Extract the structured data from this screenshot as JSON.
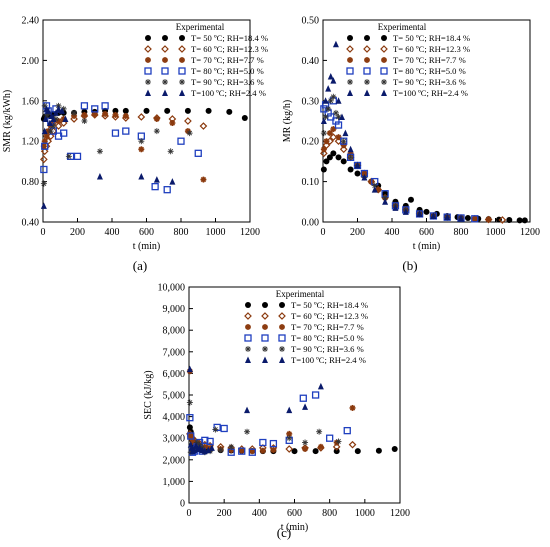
{
  "chart_data": [
    {
      "type": "scatter",
      "panel_label": "(a)",
      "xlabel": "t (min)",
      "ylabel": "SMR (kg/kWh)",
      "xlim": [
        0,
        1200
      ],
      "ylim": [
        0.4,
        2.4
      ],
      "x_ticks": [
        0,
        200,
        400,
        600,
        800,
        1000,
        1200
      ],
      "y_ticks": [
        0.4,
        0.8,
        1.2,
        1.6,
        2.0,
        2.4
      ],
      "y_tick_labels": [
        "0.40",
        "0.80",
        "1.20",
        "1.60",
        "2.00",
        "2.40"
      ],
      "grid": false,
      "legend_title": "Experimental",
      "legend_position": "top-right",
      "series": [
        {
          "name": "T= 50 ºC;  RH=18.4 %",
          "marker": "circle",
          "color": "#000000",
          "x": [
            5,
            10,
            20,
            30,
            45,
            60,
            90,
            120,
            180,
            240,
            300,
            360,
            420,
            480,
            600,
            720,
            840,
            960,
            1080,
            1170
          ],
          "y": [
            1.42,
            1.44,
            1.45,
            1.46,
            1.46,
            1.47,
            1.48,
            1.48,
            1.48,
            1.49,
            1.49,
            1.5,
            1.5,
            1.5,
            1.5,
            1.5,
            1.5,
            1.5,
            1.49,
            1.43
          ]
        },
        {
          "name": "T= 60 ºC;  RH=12.3 %",
          "marker": "diamond",
          "color": "#8b3a0e",
          "x": [
            5,
            10,
            20,
            30,
            45,
            60,
            90,
            120,
            180,
            240,
            300,
            360,
            420,
            480,
            570,
            660,
            750,
            840,
            930
          ],
          "y": [
            1.02,
            1.1,
            1.15,
            1.2,
            1.25,
            1.3,
            1.35,
            1.38,
            1.42,
            1.45,
            1.46,
            1.45,
            1.44,
            1.43,
            1.44,
            1.43,
            1.42,
            1.4,
            1.35
          ]
        },
        {
          "name": "T= 70 ºC;  RH=7.7 %",
          "marker": "asterisk",
          "color": "#8b3a0e",
          "x": [
            5,
            10,
            20,
            30,
            45,
            60,
            90,
            120,
            180,
            240,
            300,
            360,
            420,
            480,
            570,
            660,
            750,
            840,
            930
          ],
          "y": [
            1.15,
            1.2,
            1.25,
            1.3,
            1.35,
            1.38,
            1.4,
            1.42,
            1.45,
            1.46,
            1.47,
            1.47,
            1.46,
            1.45,
            1.12,
            1.42,
            1.38,
            1.3,
            0.82
          ]
        },
        {
          "name": "T= 80 ºC;  RH=5.0 %",
          "marker": "square",
          "color": "#1f3fbf",
          "x": [
            5,
            10,
            20,
            30,
            45,
            60,
            75,
            90,
            120,
            160,
            200,
            240,
            300,
            360,
            420,
            480,
            570,
            650,
            720,
            800,
            900
          ],
          "y": [
            0.92,
            1.15,
            1.55,
            1.5,
            1.4,
            1.3,
            1.52,
            1.25,
            1.28,
            1.05,
            1.05,
            1.55,
            1.52,
            1.55,
            1.28,
            1.3,
            1.25,
            0.75,
            0.72,
            1.2,
            1.08
          ]
        },
        {
          "name": "T= 90 ºC;  RH=3.6 %",
          "marker": "star",
          "color": "#333333",
          "x": [
            5,
            10,
            20,
            30,
            45,
            60,
            75,
            90,
            120,
            150,
            180,
            240,
            330,
            570,
            660,
            740,
            850
          ],
          "y": [
            0.78,
            1.55,
            1.45,
            1.48,
            1.3,
            1.35,
            1.42,
            1.55,
            1.52,
            1.05,
            1.48,
            1.4,
            1.1,
            1.2,
            1.3,
            1.1,
            1.28
          ]
        },
        {
          "name": "T=100 ºC;  RH=2.4 %",
          "marker": "triangle",
          "color": "#0a1a6b",
          "x": [
            5,
            10,
            15,
            20,
            30,
            40,
            50,
            60,
            75,
            90,
            110,
            130,
            330,
            570,
            660,
            750
          ],
          "y": [
            0.56,
            1.3,
            1.42,
            1.52,
            1.5,
            1.38,
            1.45,
            1.42,
            1.48,
            1.52,
            1.5,
            1.42,
            0.85,
            0.85,
            0.82,
            0.8
          ]
        }
      ]
    },
    {
      "type": "scatter",
      "panel_label": "(b)",
      "xlabel": "t (min)",
      "ylabel": "MR (kg/h)",
      "xlim": [
        0,
        1200
      ],
      "ylim": [
        0,
        0.5
      ],
      "x_ticks": [
        0,
        200,
        400,
        600,
        800,
        1000,
        1200
      ],
      "y_ticks": [
        0,
        0.1,
        0.2,
        0.3,
        0.4,
        0.5
      ],
      "y_tick_labels": [
        "0.00",
        "0.10",
        "0.20",
        "0.30",
        "0.40",
        "0.50"
      ],
      "grid": false,
      "legend_title": "Experimental",
      "legend_position": "top-right",
      "series": [
        {
          "name": "T= 50 ºC;  RH=18.4 %",
          "marker": "circle",
          "color": "#000000",
          "x": [
            5,
            20,
            40,
            60,
            90,
            120,
            160,
            200,
            240,
            280,
            320,
            360,
            420,
            480,
            510,
            560,
            600,
            660,
            720,
            780,
            840,
            900,
            960,
            1020,
            1080,
            1140,
            1170
          ],
          "y": [
            0.13,
            0.15,
            0.16,
            0.17,
            0.16,
            0.15,
            0.13,
            0.12,
            0.12,
            0.1,
            0.09,
            0.07,
            0.05,
            0.04,
            0.055,
            0.03,
            0.025,
            0.02,
            0.015,
            0.012,
            0.01,
            0.008,
            0.007,
            0.006,
            0.005,
            0.004,
            0.004
          ]
        },
        {
          "name": "T= 60 ºC;  RH=12.3 %",
          "marker": "diamond",
          "color": "#8b3a0e",
          "x": [
            5,
            20,
            40,
            60,
            90,
            120,
            160,
            200,
            240,
            280,
            320,
            360,
            420,
            480,
            560,
            640,
            720,
            800,
            880,
            960,
            1040
          ],
          "y": [
            0.17,
            0.19,
            0.2,
            0.21,
            0.2,
            0.18,
            0.16,
            0.14,
            0.12,
            0.1,
            0.08,
            0.06,
            0.04,
            0.03,
            0.02,
            0.015,
            0.012,
            0.01,
            0.008,
            0.006,
            0.005
          ]
        },
        {
          "name": "T= 70 ºC;  RH=7.7 %",
          "marker": "asterisk",
          "color": "#8b3a0e",
          "x": [
            5,
            20,
            40,
            60,
            90,
            120,
            160,
            200,
            240,
            280,
            320,
            360,
            420,
            480,
            560,
            640,
            720,
            800,
            880,
            960
          ],
          "y": [
            0.18,
            0.2,
            0.22,
            0.23,
            0.21,
            0.19,
            0.17,
            0.14,
            0.12,
            0.1,
            0.08,
            0.06,
            0.04,
            0.03,
            0.02,
            0.015,
            0.012,
            0.01,
            0.008,
            0.006
          ]
        },
        {
          "name": "T= 80 ºC;  RH=5.0 %",
          "marker": "square",
          "color": "#1f3fbf",
          "x": [
            5,
            15,
            30,
            45,
            60,
            75,
            90,
            120,
            160,
            200,
            240,
            300,
            360,
            420,
            480,
            560,
            640,
            720,
            800,
            880
          ],
          "y": [
            0.28,
            0.29,
            0.27,
            0.26,
            0.3,
            0.25,
            0.24,
            0.2,
            0.16,
            0.14,
            0.12,
            0.1,
            0.07,
            0.04,
            0.03,
            0.02,
            0.015,
            0.012,
            0.01,
            0.008
          ]
        },
        {
          "name": "T= 90 ºC;  RH=3.6 %",
          "marker": "star",
          "color": "#333333",
          "x": [
            5,
            15,
            30,
            45,
            60,
            75,
            90,
            120,
            160,
            200,
            240,
            300,
            360,
            420,
            480,
            560,
            640,
            720,
            800
          ],
          "y": [
            0.22,
            0.26,
            0.28,
            0.3,
            0.31,
            0.27,
            0.26,
            0.2,
            0.16,
            0.14,
            0.11,
            0.09,
            0.06,
            0.04,
            0.03,
            0.02,
            0.015,
            0.012,
            0.01
          ]
        },
        {
          "name": "T=100 ºC;  RH=2.4 %",
          "marker": "triangle",
          "color": "#0a1a6b",
          "x": [
            5,
            15,
            30,
            45,
            60,
            75,
            90,
            110,
            130,
            160,
            200,
            240,
            300,
            360,
            420,
            480,
            560,
            640,
            720,
            800
          ],
          "y": [
            0.25,
            0.3,
            0.33,
            0.36,
            0.35,
            0.44,
            0.3,
            0.26,
            0.22,
            0.18,
            0.14,
            0.11,
            0.08,
            0.05,
            0.035,
            0.025,
            0.02,
            0.015,
            0.012,
            0.01
          ]
        }
      ]
    },
    {
      "type": "scatter",
      "panel_label": "(c)",
      "xlabel": "t (min)",
      "ylabel": "SEC (kJ/kg)",
      "xlim": [
        0,
        1200
      ],
      "ylim": [
        0,
        10000
      ],
      "x_ticks": [
        0,
        200,
        400,
        600,
        800,
        1000,
        1200
      ],
      "y_ticks": [
        0,
        1000,
        2000,
        3000,
        4000,
        5000,
        6000,
        7000,
        8000,
        9000,
        10000
      ],
      "y_tick_labels": [
        "0",
        "1,000",
        "2,000",
        "3,000",
        "4,000",
        "5,000",
        "6,000",
        "7,000",
        "8,000",
        "9,000",
        "10,000"
      ],
      "grid": false,
      "legend_title": "Experimental",
      "legend_position": "top-right",
      "series": [
        {
          "name": "T= 50 ºC;  RH=18.4 %",
          "marker": "circle",
          "color": "#000000",
          "x": [
            5,
            10,
            20,
            30,
            45,
            60,
            90,
            120,
            180,
            240,
            300,
            360,
            420,
            480,
            600,
            720,
            840,
            960,
            1080,
            1170
          ],
          "y": [
            3500,
            3300,
            2900,
            2700,
            2600,
            2550,
            2500,
            2480,
            2450,
            2430,
            2420,
            2410,
            2400,
            2400,
            2400,
            2400,
            2400,
            2400,
            2420,
            2500
          ]
        },
        {
          "name": "T= 60 ºC;  RH=12.3 %",
          "marker": "diamond",
          "color": "#8b3a0e",
          "x": [
            5,
            10,
            20,
            30,
            45,
            60,
            90,
            120,
            180,
            240,
            300,
            360,
            420,
            480,
            570,
            660,
            750,
            840,
            930
          ],
          "y": [
            3200,
            3100,
            3000,
            2900,
            2800,
            2750,
            2700,
            2650,
            2600,
            2550,
            2500,
            2500,
            2550,
            2550,
            2500,
            2550,
            2550,
            2600,
            2700
          ]
        },
        {
          "name": "T= 70 ºC;  RH=7.7 %",
          "marker": "asterisk",
          "color": "#8b3a0e",
          "x": [
            5,
            10,
            20,
            30,
            45,
            60,
            90,
            120,
            180,
            240,
            300,
            360,
            420,
            480,
            570,
            660,
            750,
            840,
            930
          ],
          "y": [
            6100,
            3100,
            2900,
            2800,
            2700,
            2650,
            2600,
            2550,
            2500,
            2450,
            2420,
            2400,
            2420,
            2450,
            3200,
            2500,
            2600,
            2800,
            4400
          ]
        },
        {
          "name": "T= 80 ºC;  RH=5.0 %",
          "marker": "square",
          "color": "#1f3fbf",
          "x": [
            5,
            10,
            20,
            30,
            45,
            60,
            75,
            90,
            120,
            160,
            200,
            240,
            300,
            360,
            420,
            480,
            570,
            650,
            720,
            800,
            900
          ],
          "y": [
            3950,
            3100,
            2350,
            2400,
            2600,
            2800,
            2400,
            2900,
            2850,
            3500,
            3450,
            2350,
            2400,
            2350,
            2800,
            2750,
            2900,
            4850,
            5000,
            3000,
            3350
          ]
        },
        {
          "name": "T= 90 ºC;  RH=3.6 %",
          "marker": "star",
          "color": "#333333",
          "x": [
            5,
            10,
            20,
            30,
            45,
            60,
            75,
            90,
            120,
            150,
            180,
            240,
            330,
            570,
            660,
            740,
            850
          ],
          "y": [
            4650,
            2350,
            2500,
            2450,
            2800,
            2700,
            2550,
            2350,
            2400,
            3400,
            2450,
            2600,
            3300,
            3000,
            2800,
            3300,
            2850
          ]
        },
        {
          "name": "T=100 ºC;  RH=2.4 %",
          "marker": "triangle",
          "color": "#0a1a6b",
          "x": [
            5,
            10,
            15,
            20,
            30,
            40,
            50,
            60,
            75,
            90,
            110,
            130,
            330,
            570,
            660,
            750
          ],
          "y": [
            6200,
            2700,
            2550,
            2400,
            2450,
            2650,
            2500,
            2550,
            2450,
            2400,
            2450,
            2550,
            4300,
            4300,
            4450,
            5400
          ]
        }
      ]
    }
  ]
}
